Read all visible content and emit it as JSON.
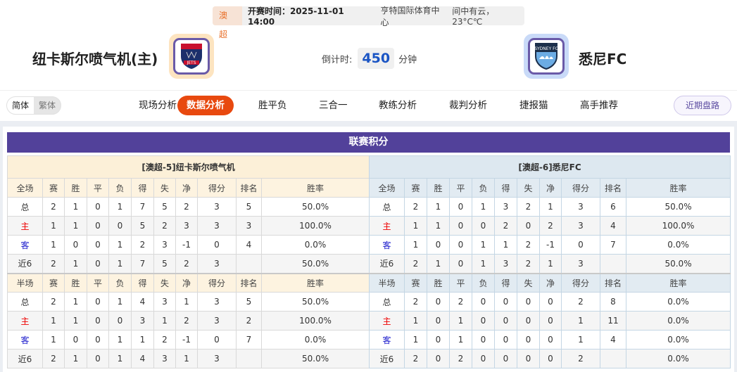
{
  "match": {
    "league": "澳超",
    "kickoff": "开赛时间：2025-11-01 14:00",
    "venue": "亨特国际体育中心",
    "weather": "间中有云，23°C℃"
  },
  "home": {
    "name": "纽卡斯尔喷气机(主)",
    "logo_text": "JETS",
    "logo_border": "#fde4c0"
  },
  "away": {
    "name": "悉尼FC",
    "logo_text": "SYDNEY FC",
    "logo_border": "#c9daf8"
  },
  "countdown": {
    "label": "倒计时:",
    "value": "450",
    "unit": "分钟"
  },
  "lang": {
    "simplified": "简体",
    "traditional": "繁体"
  },
  "nav": [
    {
      "label": "现场分析"
    },
    {
      "label": "数据分析",
      "active": true
    },
    {
      "label": "胜平负"
    },
    {
      "label": "三合一"
    },
    {
      "label": "教练分析"
    },
    {
      "label": "裁判分析"
    },
    {
      "label": "捷报猫"
    },
    {
      "label": "高手推荐"
    }
  ],
  "recent_button": "近期盘路",
  "section_title": "联赛积分",
  "columns": [
    "赛",
    "胜",
    "平",
    "负",
    "得",
    "失",
    "净",
    "得分",
    "排名",
    "胜率"
  ],
  "tables": [
    {
      "team": "[澳超-5]纽卡斯尔喷气机",
      "full": {
        "label": "全场",
        "rows": [
          [
            "总",
            "2",
            "1",
            "0",
            "1",
            "7",
            "5",
            "2",
            "3",
            "5",
            "50.0%"
          ],
          [
            "主",
            "1",
            "1",
            "0",
            "0",
            "5",
            "2",
            "3",
            "3",
            "3",
            "100.0%"
          ],
          [
            "客",
            "1",
            "0",
            "0",
            "1",
            "2",
            "3",
            "-1",
            "0",
            "4",
            "0.0%"
          ],
          [
            "近6",
            "2",
            "1",
            "0",
            "1",
            "7",
            "5",
            "2",
            "3",
            "",
            "50.0%"
          ]
        ]
      },
      "half": {
        "label": "半场",
        "rows": [
          [
            "总",
            "2",
            "1",
            "0",
            "1",
            "4",
            "3",
            "1",
            "3",
            "5",
            "50.0%"
          ],
          [
            "主",
            "1",
            "1",
            "0",
            "0",
            "3",
            "1",
            "2",
            "3",
            "2",
            "100.0%"
          ],
          [
            "客",
            "1",
            "0",
            "0",
            "1",
            "1",
            "2",
            "-1",
            "0",
            "7",
            "0.0%"
          ],
          [
            "近6",
            "2",
            "1",
            "0",
            "1",
            "4",
            "3",
            "1",
            "3",
            "",
            "50.0%"
          ]
        ]
      }
    },
    {
      "team": "[澳超-6]悉尼FC",
      "full": {
        "label": "全场",
        "rows": [
          [
            "总",
            "2",
            "1",
            "0",
            "1",
            "3",
            "2",
            "1",
            "3",
            "6",
            "50.0%"
          ],
          [
            "主",
            "1",
            "1",
            "0",
            "0",
            "2",
            "0",
            "2",
            "3",
            "4",
            "100.0%"
          ],
          [
            "客",
            "1",
            "0",
            "0",
            "1",
            "1",
            "2",
            "-1",
            "0",
            "7",
            "0.0%"
          ],
          [
            "近6",
            "2",
            "1",
            "0",
            "1",
            "3",
            "2",
            "1",
            "3",
            "",
            "50.0%"
          ]
        ]
      },
      "half": {
        "label": "半场",
        "rows": [
          [
            "总",
            "2",
            "0",
            "2",
            "0",
            "0",
            "0",
            "0",
            "2",
            "8",
            "0.0%"
          ],
          [
            "主",
            "1",
            "0",
            "1",
            "0",
            "0",
            "0",
            "0",
            "1",
            "11",
            "0.0%"
          ],
          [
            "客",
            "1",
            "0",
            "1",
            "0",
            "0",
            "0",
            "0",
            "1",
            "4",
            "0.0%"
          ],
          [
            "近6",
            "2",
            "0",
            "2",
            "0",
            "0",
            "0",
            "0",
            "2",
            "",
            "0.0%"
          ]
        ]
      }
    }
  ]
}
